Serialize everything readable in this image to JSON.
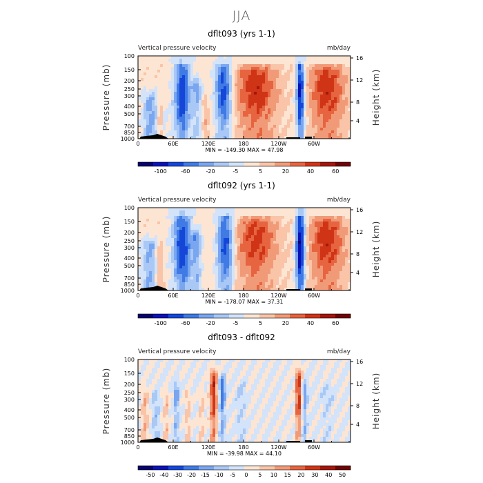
{
  "title": "JJA",
  "colors": {
    "scale10": [
      "#08046b",
      "#0b12b5",
      "#1446d8",
      "#3f7ae5",
      "#79a6ef",
      "#a9c8f5",
      "#d2e3fa",
      "#fde5d4",
      "#f9c4a8",
      "#f19a78",
      "#e6643f",
      "#cf3416",
      "#a3160c",
      "#6e0505"
    ],
    "scale12": [
      "#08046b",
      "#0b12b5",
      "#1446d8",
      "#3f7ae5",
      "#79a6ef",
      "#a9c8f5",
      "#d2e3fa",
      "#fde5d4",
      "#f9c4a8",
      "#f19a78",
      "#e6643f",
      "#cf3416",
      "#a3160c",
      "#6e0505"
    ],
    "land": "#000000"
  },
  "chart_data": [
    {
      "type": "heatmap",
      "title": "dflt093 (yrs 1-1)",
      "left_label": "Vertical pressure velocity",
      "right_label": "mb/day",
      "ylabel": "Pressure (mb)",
      "ylabel2": "Height (km)",
      "x_ticks": [
        "0",
        "60E",
        "120E",
        "180",
        "120W",
        "60W"
      ],
      "y_ticks": [
        "100",
        "150",
        "200",
        "250",
        "300",
        "400",
        "500",
        "700",
        "850",
        "1000"
      ],
      "y2_ticks": [
        "16",
        "12",
        "8",
        "4"
      ],
      "stats": "MIN = -149.30   MAX =  47.98",
      "colorbar_levels": [
        "-100",
        "-60",
        "-20",
        "-5",
        "5",
        "20",
        "40",
        "60"
      ],
      "xlim": [
        0,
        360
      ],
      "ylim": [
        1000,
        100
      ],
      "features": [
        {
          "lon": 22,
          "width": 14,
          "amp": -1.0,
          "top": 0.45
        },
        {
          "lon": 38,
          "width": 6,
          "amp": 0.6,
          "top": 0.35
        },
        {
          "lon": 45,
          "width": 5,
          "amp": -0.4,
          "top": 0.3
        },
        {
          "lon": 75,
          "width": 14,
          "amp": -1.0,
          "top": 0.95
        },
        {
          "lon": 100,
          "width": 8,
          "amp": -0.6,
          "top": 0.6
        },
        {
          "lon": 115,
          "width": 6,
          "amp": 0.4,
          "top": 0.4
        },
        {
          "lon": 145,
          "width": 14,
          "amp": -1.0,
          "top": 0.85
        },
        {
          "lon": 200,
          "width": 35,
          "amp": 0.75,
          "top": 0.8
        },
        {
          "lon": 275,
          "width": 7,
          "amp": -1.2,
          "top": 0.9
        },
        {
          "lon": 320,
          "width": 30,
          "amp": 0.75,
          "top": 0.8
        }
      ]
    },
    {
      "type": "heatmap",
      "title": "dflt092 (yrs 1-1)",
      "left_label": "Vertical pressure velocity",
      "right_label": "mb/day",
      "ylabel": "Pressure (mb)",
      "ylabel2": "Height (km)",
      "x_ticks": [
        "0",
        "60E",
        "120E",
        "180",
        "120W",
        "60W"
      ],
      "y_ticks": [
        "100",
        "150",
        "200",
        "250",
        "300",
        "400",
        "500",
        "700",
        "850",
        "1000"
      ],
      "y2_ticks": [
        "16",
        "12",
        "8",
        "4"
      ],
      "stats": "MIN = -178.07   MAX =  37.31",
      "colorbar_levels": [
        "-100",
        "-60",
        "-20",
        "-5",
        "5",
        "20",
        "40",
        "60"
      ],
      "xlim": [
        0,
        360
      ],
      "ylim": [
        1000,
        100
      ],
      "features": [
        {
          "lon": 20,
          "width": 14,
          "amp": -0.9,
          "top": 0.5
        },
        {
          "lon": 36,
          "width": 6,
          "amp": 0.6,
          "top": 0.45
        },
        {
          "lon": 75,
          "width": 16,
          "amp": -1.0,
          "top": 0.95
        },
        {
          "lon": 100,
          "width": 8,
          "amp": -0.7,
          "top": 0.6
        },
        {
          "lon": 148,
          "width": 14,
          "amp": -1.0,
          "top": 0.9
        },
        {
          "lon": 200,
          "width": 35,
          "amp": 0.7,
          "top": 0.8
        },
        {
          "lon": 275,
          "width": 8,
          "amp": -1.3,
          "top": 0.95
        },
        {
          "lon": 320,
          "width": 30,
          "amp": 0.75,
          "top": 0.8
        }
      ]
    },
    {
      "type": "heatmap",
      "title": "dflt093 - dflt092",
      "left_label": "Vertical pressure velocity",
      "right_label": "mb/day",
      "ylabel": "Pressure (mb)",
      "ylabel2": "Height (km)",
      "x_ticks": [
        "0",
        "60E",
        "120E",
        "180",
        "120W",
        "60W"
      ],
      "y_ticks": [
        "100",
        "150",
        "200",
        "250",
        "300",
        "400",
        "500",
        "700",
        "850",
        "1000"
      ],
      "y2_ticks": [
        "16",
        "12",
        "8",
        "4"
      ],
      "stats": "MIN = -39.98   MAX =  44.10",
      "colorbar_levels": [
        "-50",
        "-40",
        "-30",
        "-20",
        "-15",
        "-10",
        "-5",
        "0",
        "5",
        "10",
        "15",
        "20",
        "30",
        "40",
        "50"
      ],
      "xlim": [
        0,
        360
      ],
      "ylim": [
        1000,
        100
      ],
      "features": [
        {
          "lon": 12,
          "width": 6,
          "amp": 0.6,
          "top": 0.5
        },
        {
          "lon": 30,
          "width": 6,
          "amp": -0.5,
          "top": 0.5
        },
        {
          "lon": 48,
          "width": 5,
          "amp": 0.5,
          "top": 0.5
        },
        {
          "lon": 65,
          "width": 5,
          "amp": -0.6,
          "top": 0.6
        },
        {
          "lon": 85,
          "width": 5,
          "amp": 0.5,
          "top": 0.5
        },
        {
          "lon": 108,
          "width": 5,
          "amp": 0.4,
          "top": 0.5
        },
        {
          "lon": 128,
          "width": 6,
          "amp": 0.9,
          "top": 0.8
        },
        {
          "lon": 143,
          "width": 5,
          "amp": -0.7,
          "top": 0.7
        },
        {
          "lon": 175,
          "width": 10,
          "amp": -0.25,
          "top": 0.6
        },
        {
          "lon": 272,
          "width": 5,
          "amp": 0.9,
          "top": 0.8
        },
        {
          "lon": 282,
          "width": 5,
          "amp": -0.6,
          "top": 0.6
        },
        {
          "lon": 320,
          "width": 12,
          "amp": -0.2,
          "top": 0.6
        }
      ]
    }
  ]
}
